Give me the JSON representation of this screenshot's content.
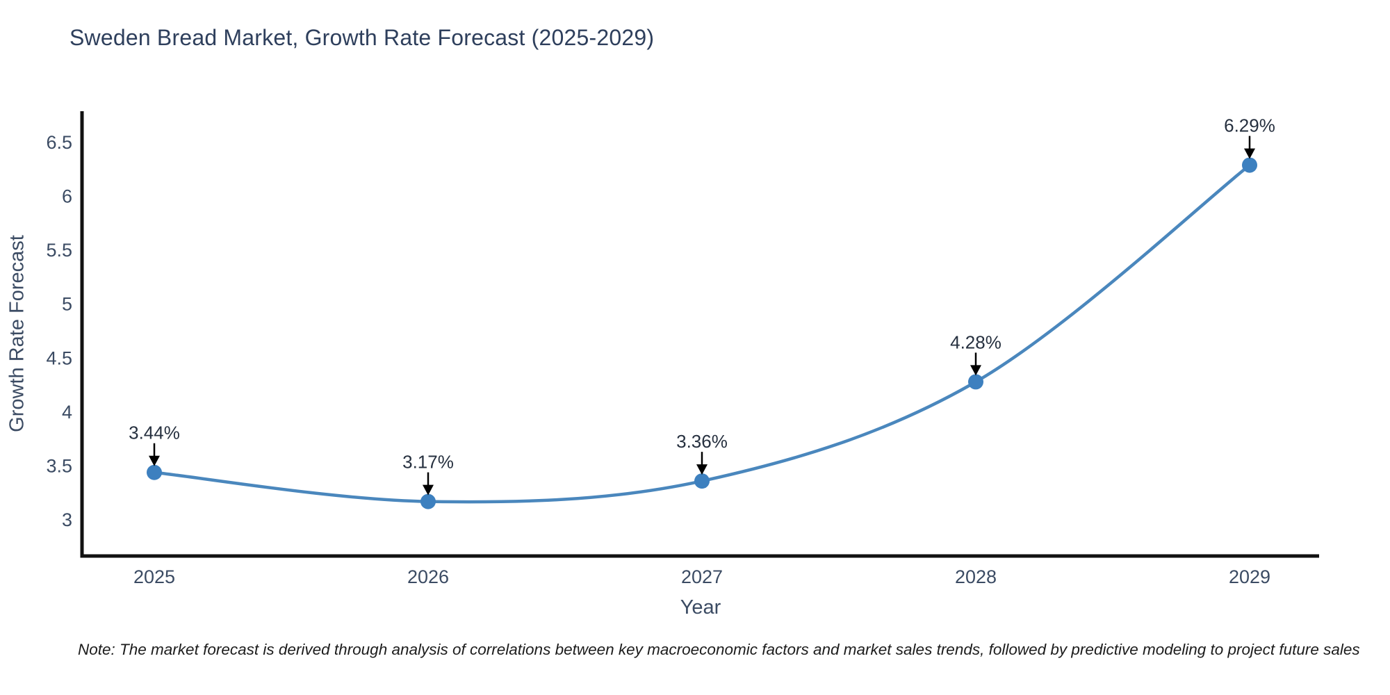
{
  "title": "Sweden Bread Market, Growth Rate Forecast (2025-2029)",
  "note": "Note: The market forecast is derived through analysis of correlations between key macroeconomic factors and market sales trends, followed by predictive modeling to project future sales",
  "chart_data": {
    "type": "line",
    "title": "Sweden Bread Market, Growth Rate Forecast (2025-2029)",
    "xlabel": "Year",
    "ylabel": "Growth Rate Forecast",
    "categories": [
      "2025",
      "2026",
      "2027",
      "2028",
      "2029"
    ],
    "series": [
      {
        "name": "Growth Rate Forecast",
        "values": [
          3.44,
          3.17,
          3.36,
          4.28,
          6.29
        ],
        "point_labels": [
          "3.44%",
          "3.17%",
          "3.36%",
          "4.28%",
          "6.29%"
        ]
      }
    ],
    "ytick_values": [
      3,
      3.5,
      4,
      4.5,
      5,
      5.5,
      6,
      6.5
    ],
    "ytick_labels": [
      "3",
      "3.5",
      "4",
      "4.5",
      "5",
      "5.5",
      "6",
      "6.5"
    ],
    "ylim": [
      2.66,
      6.79
    ],
    "grid": false,
    "legend": "none",
    "line_shape": "spline",
    "colors": {
      "line": "#4a87bd",
      "marker": "#3d80bf",
      "axis": "#111111",
      "tick_text": "#3b4b63",
      "title_text": "#2e3f5c",
      "annotation_text": "#26303f",
      "annotation_arrow": "#000000",
      "background": "#ffffff"
    }
  }
}
